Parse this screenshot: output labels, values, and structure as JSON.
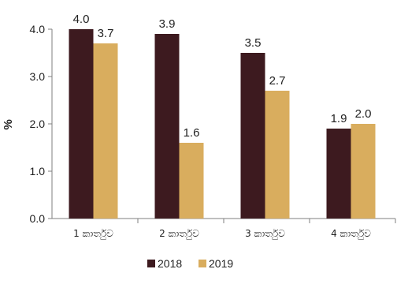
{
  "chart_data": {
    "type": "bar",
    "title": "",
    "xlabel": "",
    "ylabel": "%",
    "ylim": [
      0,
      4
    ],
    "yticks": [
      "0.0",
      "1.0",
      "2.0",
      "3.0",
      "4.0"
    ],
    "categories": [
      "1 කාර්තුව",
      "2 කාර්තුව",
      "3 කාර්තුව",
      "4 කාර්තුව"
    ],
    "series": [
      {
        "name": "2018",
        "values": [
          4.0,
          3.9,
          3.5,
          1.9
        ],
        "labels": [
          "4.0",
          "3.9",
          "3.5",
          "1.9"
        ],
        "color": "#3d1a1f"
      },
      {
        "name": "2019",
        "values": [
          3.7,
          1.6,
          2.7,
          2.0
        ],
        "labels": [
          "3.7",
          "1.6",
          "2.7",
          "2.0"
        ],
        "color": "#d9ad5e"
      }
    ],
    "grid": false,
    "legend_position": "bottom-center"
  }
}
